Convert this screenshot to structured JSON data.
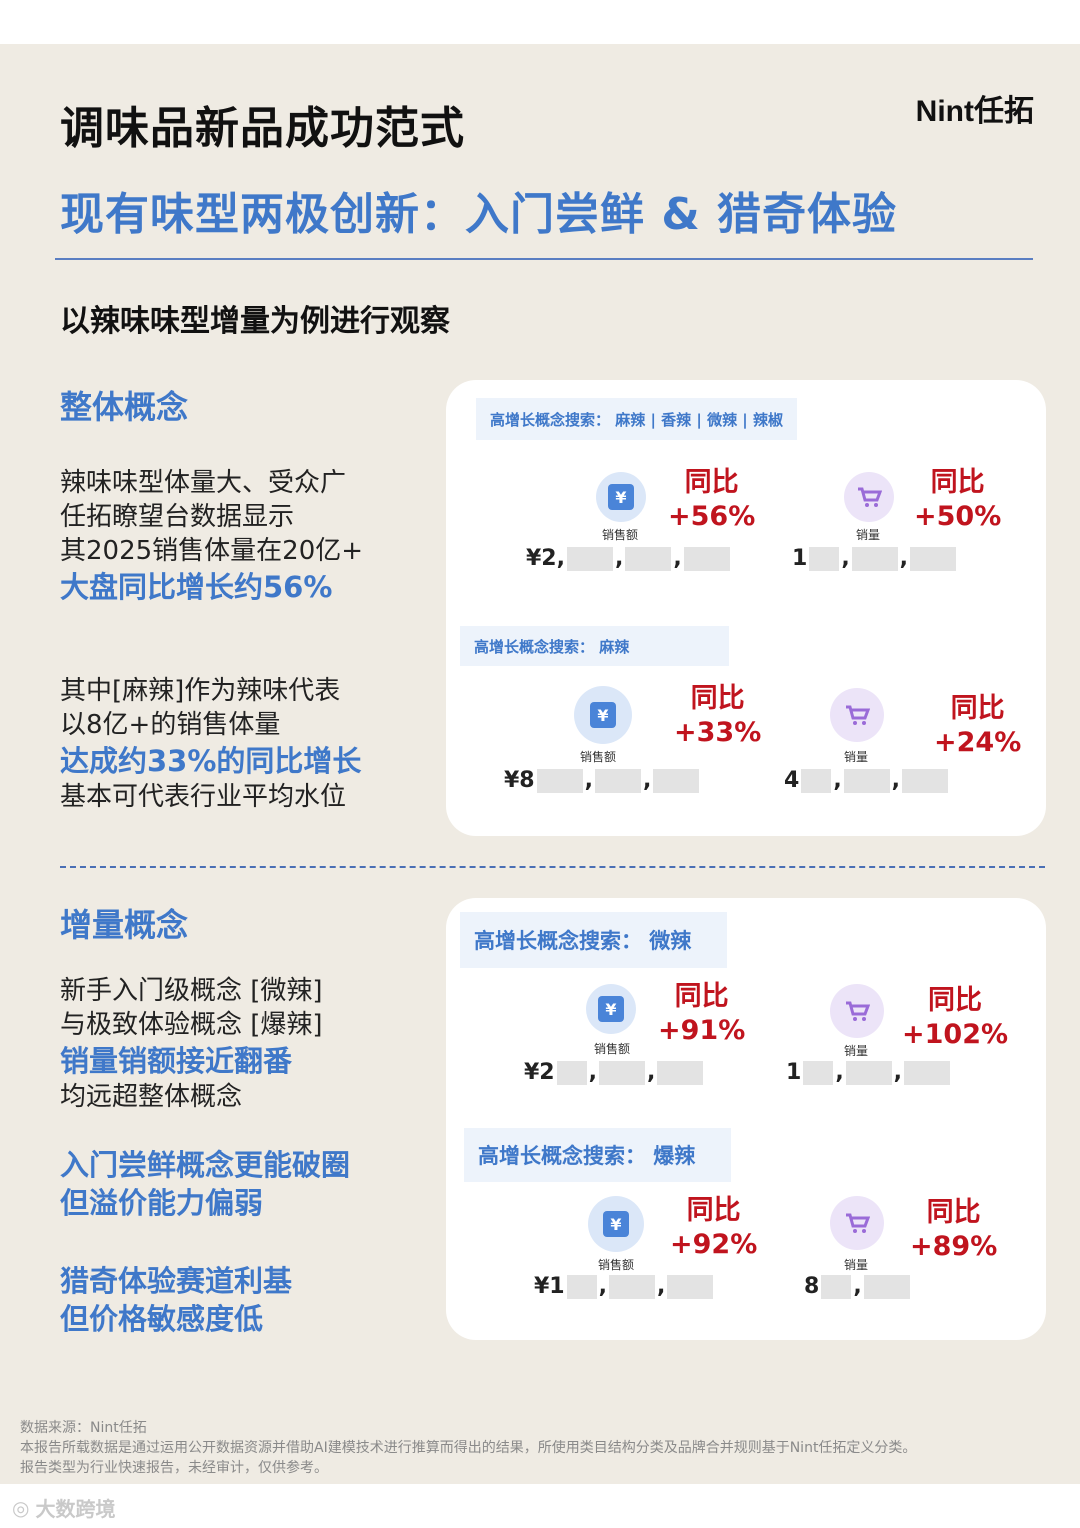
{
  "header": {
    "title": "调味品新品成功范式",
    "logo": "Nint任拓",
    "subtitle": "现有味型两极创新：入门尝鲜 & 猎奇体验",
    "intro": "以辣味味型增量为例进行观察"
  },
  "overall": {
    "heading": "整体概念",
    "p1": [
      "辣味味型体量大、受众广",
      "任拓瞭望台数据显示",
      "其2025销售体量在20亿+"
    ],
    "p1_highlight": "大盘同比增长约56%",
    "p2a": [
      "其中[麻辣]作为辣味代表",
      "以8亿+的销售体量"
    ],
    "p2_highlight": "达成约33%的同比增长",
    "p2b": "基本可代表行业平均水位"
  },
  "incremental": {
    "heading": "增量概念",
    "p1": [
      "新手入门级概念 [微辣]",
      "与极致体验概念 [爆辣]"
    ],
    "p1_highlight": "销量销额接近翻番",
    "p1_tail": "均远超整体概念",
    "b1": [
      "入门尝鲜概念更能破圈",
      "但溢价能力偏弱"
    ],
    "b2": [
      "猎奇体验赛道利基",
      "但价格敏感度低"
    ]
  },
  "cards": {
    "c1": {
      "chip1": "高增长概念搜索：  麻辣 | 香辣 | 微辣 | 辣椒",
      "m1": {
        "icon": "yen-icon",
        "label": "销售额",
        "yoy_label": "同比",
        "yoy": "+56%",
        "value_prefix": "¥2,"
      },
      "m2": {
        "icon": "cart-icon",
        "label": "销量",
        "yoy_label": "同比",
        "yoy": "+50%",
        "value_prefix": "1"
      },
      "chip2": "高增长概念搜索：  麻辣",
      "m3": {
        "icon": "yen-icon",
        "label": "销售额",
        "yoy_label": "同比",
        "yoy": "+33%",
        "value_prefix": "¥8"
      },
      "m4": {
        "icon": "cart-icon",
        "label": "销量",
        "yoy_label": "同比",
        "yoy": "+24%",
        "value_prefix": "4"
      }
    },
    "c2": {
      "chip1": "高增长概念搜索：  微辣",
      "m1": {
        "icon": "yen-icon",
        "label": "销售额",
        "yoy_label": "同比",
        "yoy": "+91%",
        "value_prefix": "¥2"
      },
      "m2": {
        "icon": "cart-icon",
        "label": "销量",
        "yoy_label": "同比",
        "yoy": "+102%",
        "value_prefix": "1"
      },
      "chip2": "高增长概念搜索：  爆辣",
      "m3": {
        "icon": "yen-icon",
        "label": "销售额",
        "yoy_label": "同比",
        "yoy": "+92%",
        "value_prefix": "¥1"
      },
      "m4": {
        "icon": "cart-icon",
        "label": "销量",
        "yoy_label": "同比",
        "yoy": "+89%",
        "value_prefix": "8"
      }
    }
  },
  "footer": {
    "l1": "数据来源：Nint任拓",
    "l2": "本报告所载数据是通过运用公开数据资源并借助AI建模技术进行推算而得出的结果，所使用类目结构分类及品牌合并规则基于Nint任拓定义分类。",
    "l3": "报告类型为行业快速报告，未经审计，仅供参考。"
  },
  "watermark": "大数跨境",
  "colors": {
    "accent": "#3f78c9",
    "red": "#c0141e",
    "bg": "#efebe3"
  }
}
